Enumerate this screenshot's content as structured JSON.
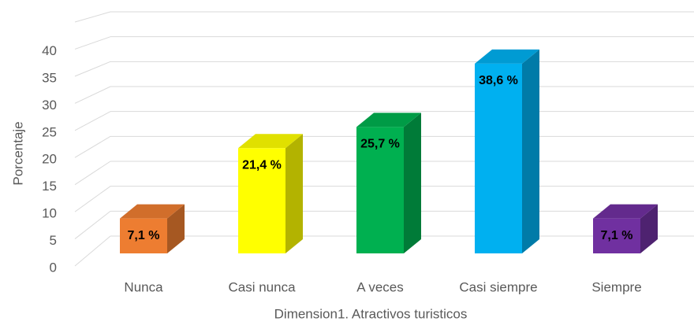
{
  "chart_data": {
    "type": "bar3d",
    "categories": [
      "Nunca",
      "Casi nunca",
      "A veces",
      "Casi siempre",
      "Siempre"
    ],
    "values": [
      7.1,
      21.4,
      25.7,
      38.6,
      7.1
    ],
    "value_labels": [
      "7,1 %",
      "21,4 %",
      "25,7 %",
      "38,6 %",
      "7,1 %"
    ],
    "colors": [
      "#ed7d31",
      "#ffff00",
      "#00b050",
      "#00b0f0",
      "#7030a0"
    ],
    "ylim": [
      0,
      45
    ],
    "yticks": [
      0,
      5,
      10,
      15,
      20,
      25,
      30,
      35,
      40
    ],
    "y_label": "Porcentaje",
    "x_label": "Dimension1. Atractivos turisticos",
    "grid": true
  }
}
